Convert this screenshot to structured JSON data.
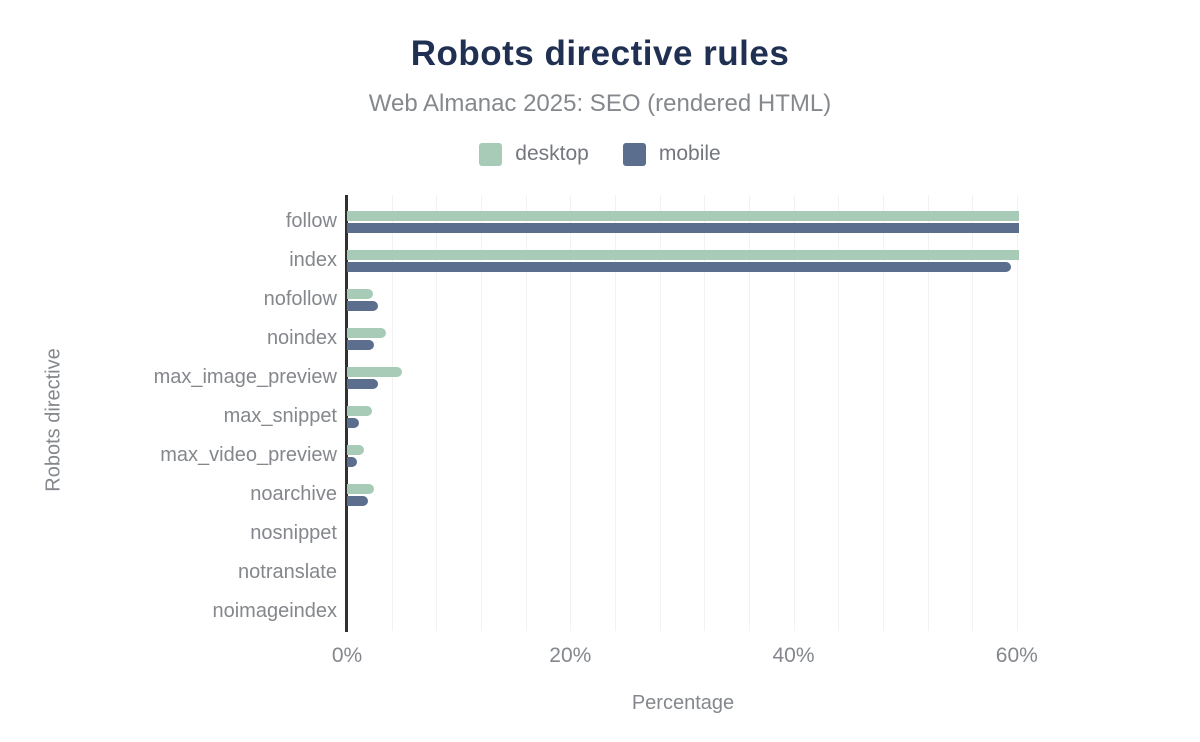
{
  "header": {
    "title": "Robots directive rules",
    "subtitle": "Web Almanac 2025: SEO (rendered HTML)"
  },
  "legend": {
    "items": [
      {
        "label": "desktop",
        "color": "#a8cbb7"
      },
      {
        "label": "mobile",
        "color": "#5b6e8e"
      }
    ]
  },
  "chart_data": {
    "type": "bar",
    "orientation": "horizontal",
    "title": "Robots directive rules",
    "subtitle": "Web Almanac 2025: SEO (rendered HTML)",
    "xlabel": "Percentage",
    "ylabel": "Robots directive",
    "categories": [
      "follow",
      "index",
      "nofollow",
      "noindex",
      "max_image_preview",
      "max_snippet",
      "max_video_preview",
      "noarchive",
      "nosnippet",
      "notranslate",
      "noimageindex"
    ],
    "series": [
      {
        "name": "desktop",
        "color": "#a8cbb7",
        "values": [
          60.2,
          60.2,
          2.3,
          3.5,
          4.9,
          2.2,
          1.5,
          2.4,
          0,
          0,
          0
        ]
      },
      {
        "name": "mobile",
        "color": "#5b6e8e",
        "values": [
          60.2,
          59.5,
          2.8,
          2.4,
          2.8,
          1.1,
          0.9,
          1.9,
          0,
          0,
          0
        ]
      }
    ],
    "xlim": [
      0,
      60.2
    ],
    "xticks": [
      {
        "value": 0,
        "label": "0%"
      },
      {
        "value": 20,
        "label": "20%"
      },
      {
        "value": 40,
        "label": "40%"
      },
      {
        "value": 60,
        "label": "60%"
      }
    ],
    "minor_gridline_step": 4,
    "grid": true,
    "legend_position": "top"
  },
  "colors": {
    "title": "#203052",
    "subtitle": "#85888d",
    "tick_label": "#84878c",
    "axis_title": "#84878c",
    "legend_label": "#74777d",
    "axis_line": "#303030",
    "gridline": "#f2f2f2",
    "background": "#ffffff"
  }
}
